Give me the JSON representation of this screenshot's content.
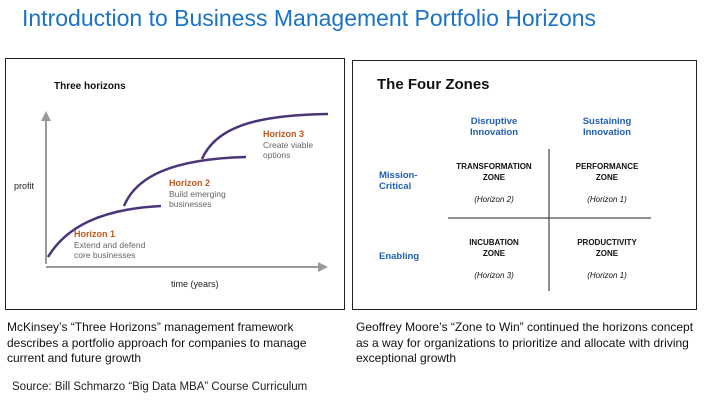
{
  "slide": {
    "title": "Introduction to Business Management Portfolio Horizons",
    "source": "Source: Bill Schmarzo “Big Data MBA” Course Curriculum"
  },
  "left_panel": {
    "heading": "Three horizons",
    "y_axis_label": "profit",
    "x_axis_label": "time (years)",
    "horizons": [
      {
        "name": "Horizon 1",
        "line1": "Extend and defend",
        "line2": "core businesses"
      },
      {
        "name": "Horizon 2",
        "line1": "Build emerging",
        "line2": "businesses"
      },
      {
        "name": "Horizon 3",
        "line1": "Create viable",
        "line2": "options"
      }
    ],
    "caption": "McKinsey’s “Three Horizons” management framework describes a portfolio approach for companies to manage current and future growth"
  },
  "right_panel": {
    "heading": "The Four Zones",
    "col_headers": [
      {
        "line1": "Disruptive",
        "line2": "Innovation"
      },
      {
        "line1": "Sustaining",
        "line2": "Innovation"
      }
    ],
    "row_headers": [
      {
        "line1": "Mission-",
        "line2": "Critical"
      },
      {
        "line1": "Enabling",
        "line2": ""
      }
    ],
    "zones": [
      {
        "line1": "TRANSFORMATION",
        "line2": "ZONE",
        "horizon": "(Horizon 2)"
      },
      {
        "line1": "PERFORMANCE",
        "line2": "ZONE",
        "horizon": "(Horizon 1)"
      },
      {
        "line1": "INCUBATION",
        "line2": "ZONE",
        "horizon": "(Horizon 3)"
      },
      {
        "line1": "PRODUCTIVITY",
        "line2": "ZONE",
        "horizon": "(Horizon 1)"
      }
    ],
    "caption": "Geoffrey Moore’s “Zone to Win” continued the horizons concept as a way for organizations to prioritize and allocate with driving exceptional growth"
  },
  "colors": {
    "title_blue": "#1a73c9",
    "header_blue": "#1f5fb5",
    "horizon_orange": "#c0571c",
    "curve_purple": "#4a3578",
    "axis_gray": "#9a9a9a"
  }
}
